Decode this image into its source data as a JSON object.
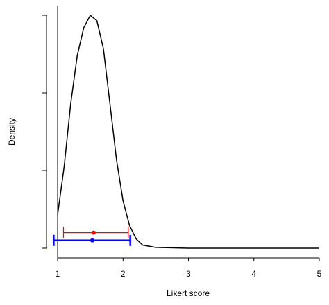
{
  "chart_data": {
    "type": "density",
    "x_label": "Likert score",
    "y_label": "Density",
    "xlim": [
      1,
      5
    ],
    "xticks": [
      1,
      2,
      3,
      4,
      5
    ],
    "ylim": [
      -0.125,
      3.125
    ],
    "yticks": [
      0,
      1,
      2,
      3
    ],
    "curve": {
      "color": "#000000",
      "x": [
        1,
        1.1,
        1.2,
        1.3,
        1.4,
        1.5,
        1.6,
        1.7,
        1.8,
        1.9,
        2.0,
        2.1,
        2.2,
        2.3,
        2.5,
        3,
        4,
        5
      ],
      "values": [
        0.43,
        1.05,
        1.86,
        2.48,
        2.84,
        3.0,
        2.93,
        2.57,
        1.86,
        1.14,
        0.61,
        0.29,
        0.12,
        0.04,
        0.01,
        0,
        0,
        0
      ]
    },
    "intervals": [
      {
        "color": "#ff0000",
        "low": 1.09,
        "mid": 1.55,
        "high": 2.08,
        "y": 0.2
      },
      {
        "color": "#0000ff",
        "low": 0.94,
        "mid": 1.53,
        "high": 2.11,
        "y": 0.1
      }
    ]
  }
}
